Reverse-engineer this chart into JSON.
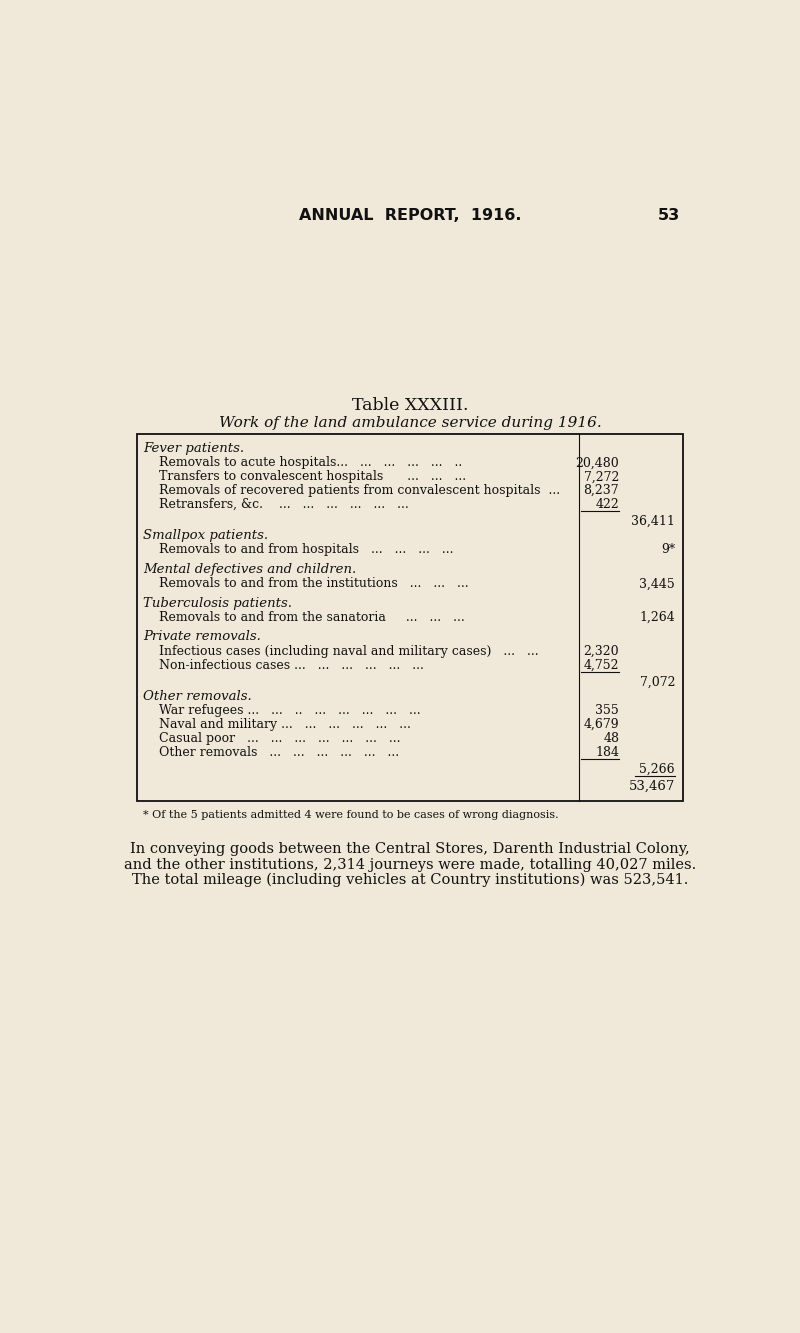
{
  "bg_color": "#f0e8d8",
  "header_title": "ANNUAL  REPORT,  1916.",
  "header_page": "53",
  "table_title_1": "Table XXXIII.",
  "table_title_2": "Work of the land ambulance service during 1916.",
  "rows": [
    {
      "type": "section_header",
      "text": "Fever patients."
    },
    {
      "type": "item",
      "text": "Removals to acute hospitals...   ...   ...   ...   ...   ..",
      "col1": "20,480",
      "col2": ""
    },
    {
      "type": "item",
      "text": "Transfers to convalescent hospitals      ...   ...   ...",
      "col1": "7,272",
      "col2": ""
    },
    {
      "type": "item",
      "text": "Removals of recovered patients from convalescent hospitals  ...",
      "col1": "8,237",
      "col2": ""
    },
    {
      "type": "item",
      "text": "Retransfers, &c.    ...   ...   ...   ...   ...   ...",
      "col1": "422",
      "col2": ""
    },
    {
      "type": "subtotal",
      "col2": "36,411"
    },
    {
      "type": "section_header",
      "text": "Smallpox patients."
    },
    {
      "type": "item",
      "text": "Removals to and from hospitals   ...   ...   ...   ...",
      "col1": "",
      "col2": "9*"
    },
    {
      "type": "spacer"
    },
    {
      "type": "section_header",
      "text": "Mental defectives and children."
    },
    {
      "type": "item",
      "text": "Removals to and from the institutions   ...   ...   ...",
      "col1": "",
      "col2": "3,445"
    },
    {
      "type": "spacer"
    },
    {
      "type": "section_header",
      "text": "Tuberculosis patients."
    },
    {
      "type": "item",
      "text": "Removals to and from the sanatoria     ...   ...   ...",
      "col1": "",
      "col2": "1,264"
    },
    {
      "type": "spacer"
    },
    {
      "type": "section_header",
      "text": "Private removals."
    },
    {
      "type": "item",
      "text": "Infectious cases (including naval and military cases)   ...   ...",
      "col1": "2,320",
      "col2": ""
    },
    {
      "type": "item",
      "text": "Non-infectious cases ...   ...   ...   ...   ...   ...",
      "col1": "4,752",
      "col2": ""
    },
    {
      "type": "subtotal",
      "col2": "7,072"
    },
    {
      "type": "section_header",
      "text": "Other removals."
    },
    {
      "type": "item",
      "text": "War refugees ...   ...   ..   ...   ...   ...   ...   ...",
      "col1": "355",
      "col2": ""
    },
    {
      "type": "item",
      "text": "Naval and military ...   ...   ...   ...   ...   ...",
      "col1": "4,679",
      "col2": ""
    },
    {
      "type": "item",
      "text": "Casual poor   ...   ...   ...   ...   ...   ...   ...",
      "col1": "48",
      "col2": ""
    },
    {
      "type": "item",
      "text": "Other removals   ...   ...   ...   ...   ...   ...",
      "col1": "184",
      "col2": ""
    },
    {
      "type": "subtotal",
      "col2": "5,266"
    },
    {
      "type": "grandtotal",
      "col2": "53,467"
    }
  ],
  "footnote": "* Of the 5 patients admitted 4 were found to be cases of wrong diagnosis.",
  "para1": "In conveying goods between the Central Stores, Darenth Industrial Colony,",
  "para2": "and the other institutions, 2,314 journeys were made, totalling 40,027 miles.",
  "para3": "The total mileage (including vehicles at Country institutions) was 523,541."
}
